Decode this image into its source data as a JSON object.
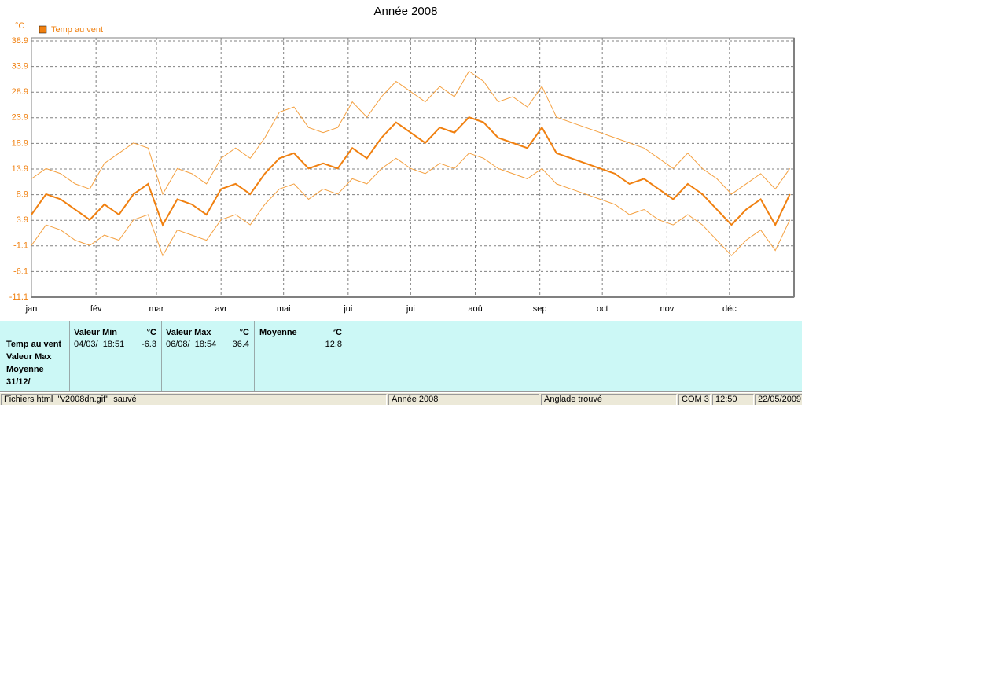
{
  "chart_data": {
    "type": "line",
    "title": "Année 2008",
    "y_label": "°C",
    "x": [
      0,
      7,
      14,
      21,
      28,
      35,
      42,
      49,
      56,
      63,
      70,
      77,
      84,
      91,
      98,
      105,
      112,
      119,
      126,
      133,
      140,
      147,
      154,
      161,
      168,
      175,
      182,
      189,
      196,
      203,
      210,
      217,
      224,
      231,
      238,
      245,
      252,
      259,
      266,
      273,
      280,
      287,
      294,
      301,
      308,
      315,
      322,
      329,
      336,
      343,
      350,
      357,
      364
    ],
    "xlim": [
      0,
      366
    ],
    "xticks": [
      {
        "value": 0,
        "label": "jan"
      },
      {
        "value": 31,
        "label": "fév"
      },
      {
        "value": 60,
        "label": "mar"
      },
      {
        "value": 91,
        "label": "avr"
      },
      {
        "value": 121,
        "label": "mai"
      },
      {
        "value": 152,
        "label": "jui"
      },
      {
        "value": 182,
        "label": "jui"
      },
      {
        "value": 213,
        "label": "aoû"
      },
      {
        "value": 244,
        "label": "sep"
      },
      {
        "value": 274,
        "label": "oct"
      },
      {
        "value": 305,
        "label": "nov"
      },
      {
        "value": 335,
        "label": "déc"
      }
    ],
    "ylim": [
      -11.1,
      38.9
    ],
    "yticks": [
      -11.1,
      -6.1,
      -1.1,
      3.9,
      8.9,
      13.9,
      18.9,
      23.9,
      28.9,
      33.9,
      38.9
    ],
    "grid": true,
    "series": [
      {
        "name": "Temp au vent",
        "color": "#f08010",
        "values": [
          5,
          9,
          8,
          6,
          4,
          7,
          5,
          9,
          11,
          3,
          8,
          7,
          5,
          10,
          11,
          9,
          13,
          16,
          17,
          14,
          15,
          14,
          18,
          16,
          20,
          23,
          21,
          19,
          22,
          21,
          24,
          23,
          20,
          19,
          18,
          22,
          17,
          16,
          15,
          14,
          13,
          11,
          12,
          10,
          8,
          11,
          9,
          6,
          3,
          6,
          8,
          3,
          9
        ]
      },
      {
        "color": "#f4a040",
        "values": [
          12,
          14,
          13,
          11,
          10,
          15,
          17,
          19,
          18,
          9,
          14,
          13,
          11,
          16,
          18,
          16,
          20,
          25,
          26,
          22,
          21,
          22,
          27,
          24,
          28,
          31,
          29,
          27,
          30,
          28,
          33,
          31,
          27,
          28,
          26,
          30,
          24,
          23,
          22,
          21,
          20,
          19,
          18,
          16,
          14,
          17,
          14,
          12,
          9,
          11,
          13,
          10,
          14
        ]
      },
      {
        "color": "#f4a040",
        "values": [
          -1,
          3,
          2,
          0,
          -1,
          1,
          0,
          4,
          5,
          -3,
          2,
          1,
          0,
          4,
          5,
          3,
          7,
          10,
          11,
          8,
          10,
          9,
          12,
          11,
          14,
          16,
          14,
          13,
          15,
          14,
          17,
          16,
          14,
          13,
          12,
          14,
          11,
          10,
          9,
          8,
          7,
          5,
          6,
          4,
          3,
          5,
          3,
          0,
          -3,
          0,
          2,
          -2,
          4
        ]
      }
    ]
  },
  "panel": {
    "row_labels": [
      "Temp au vent",
      "Valeur Max",
      "Moyenne",
      "31/12/"
    ],
    "columns": [
      {
        "header": "Valeur Min",
        "unit": "°C",
        "date": "04/03/  18:51",
        "value": -6.3
      },
      {
        "header": "Valeur Max",
        "unit": "°C",
        "date": "06/08/  18:54",
        "value": 36.4
      },
      {
        "header": "Moyenne",
        "unit": "°C",
        "value": 12.8
      }
    ]
  },
  "status_bar": [
    "Fichiers html  \"v2008dn.gif\"  sauvé",
    "Année 2008",
    "Anglade trouvé",
    "COM 3",
    "12:50",
    "22/05/2009"
  ]
}
